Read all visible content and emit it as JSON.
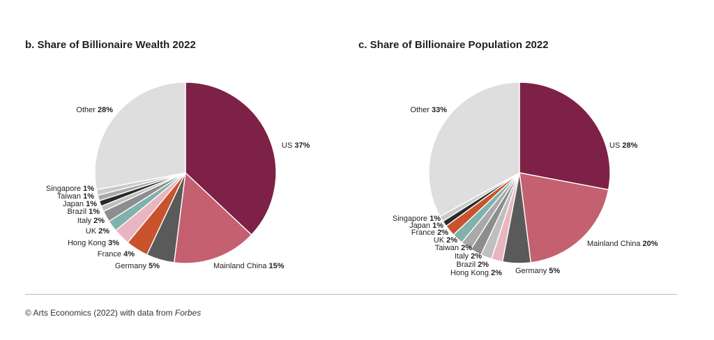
{
  "colors": {
    "US": "#7d2146",
    "Mainland China": "#c4606f",
    "Germany": "#5a5a5a",
    "France": "#c8532c",
    "Hong Kong": "#e8b6c0",
    "UK": "#7fb2ac",
    "Italy": "#8d8d8d",
    "Brazil": "#bfbfbf",
    "Japan": "#2a2a2a",
    "Taiwan": "#a9a9a9",
    "Singapore": "#cacaca",
    "Other": "#dedede"
  },
  "chart_data": [
    {
      "type": "pie",
      "title": "b. Share of Billionaire Wealth 2022",
      "slices": [
        {
          "label": "US",
          "value": 37,
          "value_label": "37%"
        },
        {
          "label": "Mainland China",
          "value": 15,
          "value_label": "15%"
        },
        {
          "label": "Germany",
          "value": 5,
          "value_label": "5%"
        },
        {
          "label": "France",
          "value": 4,
          "value_label": "4%"
        },
        {
          "label": "Hong Kong",
          "value": 3,
          "value_label": "3%"
        },
        {
          "label": "UK",
          "value": 2,
          "value_label": "2%"
        },
        {
          "label": "Italy",
          "value": 2,
          "value_label": "2%"
        },
        {
          "label": "Brazil",
          "value": 1,
          "value_label": "1%"
        },
        {
          "label": "Japan",
          "value": 1,
          "value_label": "1%"
        },
        {
          "label": "Taiwan",
          "value": 1,
          "value_label": "1%"
        },
        {
          "label": "Singapore",
          "value": 1,
          "value_label": "1%"
        },
        {
          "label": "Other",
          "value": 28,
          "value_label": "28%"
        }
      ]
    },
    {
      "type": "pie",
      "title": "c. Share of Billionaire Population 2022",
      "slices": [
        {
          "label": "US",
          "value": 28,
          "value_label": "28%"
        },
        {
          "label": "Mainland China",
          "value": 20,
          "value_label": "20%"
        },
        {
          "label": "Germany",
          "value": 5,
          "value_label": "5%"
        },
        {
          "label": "Hong Kong",
          "value": 2,
          "value_label": "2%"
        },
        {
          "label": "Brazil",
          "value": 2,
          "value_label": "2%"
        },
        {
          "label": "Italy",
          "value": 2,
          "value_label": "2%"
        },
        {
          "label": "Taiwan",
          "value": 2,
          "value_label": "2%"
        },
        {
          "label": "UK",
          "value": 2,
          "value_label": "2%"
        },
        {
          "label": "France",
          "value": 2,
          "value_label": "2%"
        },
        {
          "label": "Japan",
          "value": 1,
          "value_label": "1%"
        },
        {
          "label": "Singapore",
          "value": 1,
          "value_label": "1%"
        },
        {
          "label": "Other",
          "value": 33,
          "value_label": "33%"
        }
      ]
    }
  ],
  "footer": {
    "source_prefix": "© Arts Economics (2022) with data from ",
    "source_italic": "Forbes"
  }
}
